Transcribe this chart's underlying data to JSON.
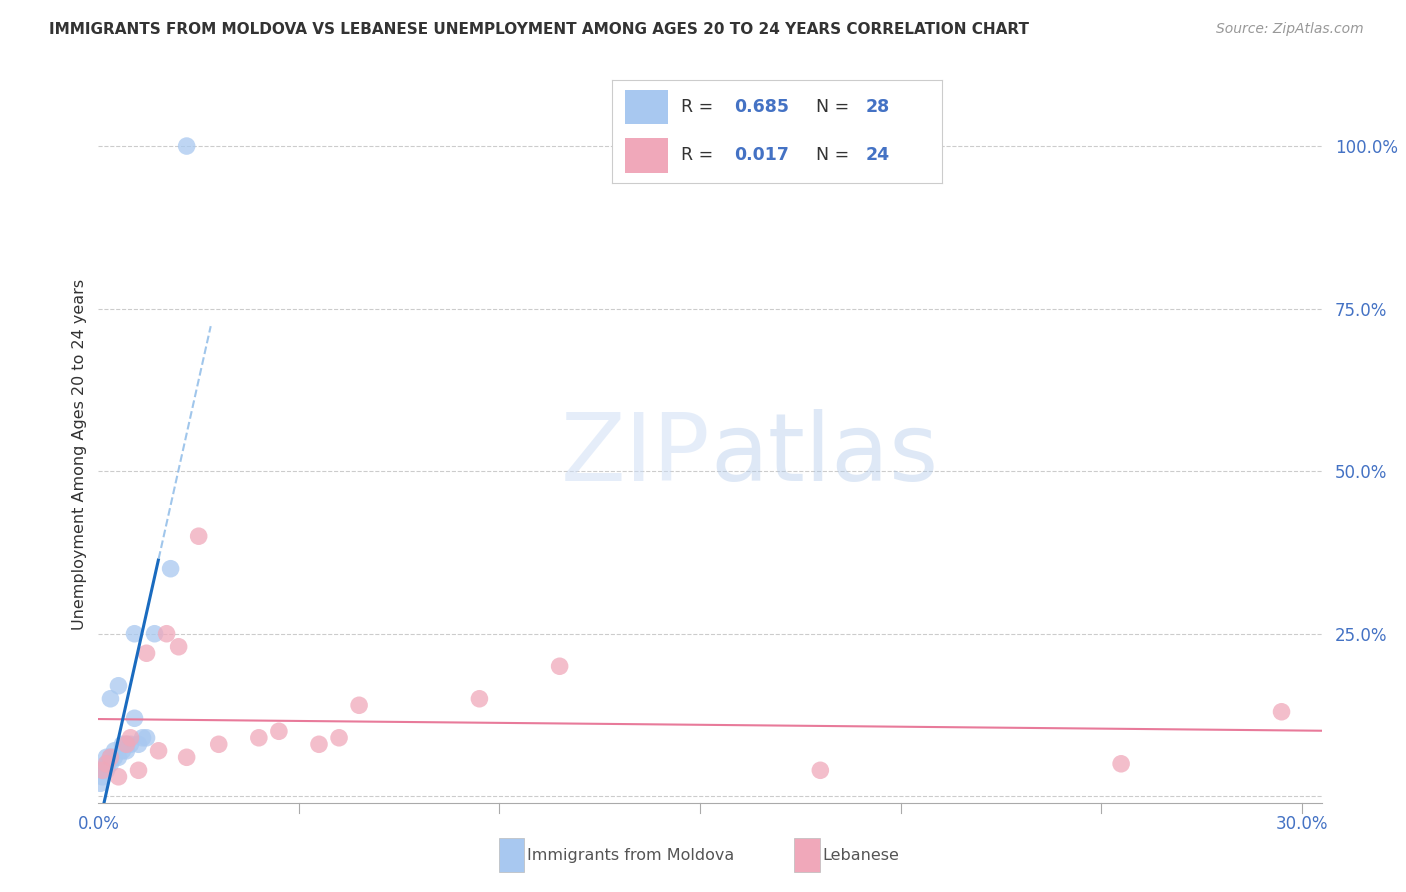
{
  "title": "IMMIGRANTS FROM MOLDOVA VS LEBANESE UNEMPLOYMENT AMONG AGES 20 TO 24 YEARS CORRELATION CHART",
  "source": "Source: ZipAtlas.com",
  "ylabel": "Unemployment Among Ages 20 to 24 years",
  "xlim": [
    0.0,
    0.305
  ],
  "ylim": [
    -0.01,
    1.06
  ],
  "xtick_positions": [
    0.0,
    0.05,
    0.1,
    0.15,
    0.2,
    0.25,
    0.3
  ],
  "xticklabels": [
    "0.0%",
    "",
    "",
    "",
    "",
    "",
    "30.0%"
  ],
  "ytick_positions": [
    0.0,
    0.25,
    0.5,
    0.75,
    1.0
  ],
  "yticklabels": [
    "",
    "25.0%",
    "50.0%",
    "75.0%",
    "100.0%"
  ],
  "legend_r1": "0.685",
  "legend_n1": "28",
  "legend_r2": "0.017",
  "legend_n2": "24",
  "background_color": "#ffffff",
  "moldova_color": "#a8c8f0",
  "lebanese_color": "#f0a8ba",
  "moldova_line_color": "#1a6bbf",
  "lebanese_line_color": "#e87a9a",
  "moldova_x": [
    0.0005,
    0.001,
    0.001,
    0.0015,
    0.002,
    0.002,
    0.002,
    0.0025,
    0.003,
    0.003,
    0.003,
    0.004,
    0.004,
    0.005,
    0.005,
    0.006,
    0.006,
    0.007,
    0.007,
    0.008,
    0.009,
    0.009,
    0.01,
    0.011,
    0.012,
    0.014,
    0.018,
    0.022
  ],
  "moldova_y": [
    0.02,
    0.03,
    0.04,
    0.04,
    0.04,
    0.05,
    0.06,
    0.05,
    0.05,
    0.06,
    0.15,
    0.06,
    0.07,
    0.06,
    0.17,
    0.07,
    0.08,
    0.07,
    0.08,
    0.08,
    0.25,
    0.12,
    0.08,
    0.09,
    0.09,
    0.25,
    0.35,
    1.0
  ],
  "lebanese_x": [
    0.001,
    0.002,
    0.003,
    0.005,
    0.007,
    0.008,
    0.01,
    0.012,
    0.015,
    0.017,
    0.02,
    0.022,
    0.025,
    0.03,
    0.04,
    0.045,
    0.055,
    0.06,
    0.065,
    0.095,
    0.115,
    0.18,
    0.255,
    0.295
  ],
  "lebanese_y": [
    0.04,
    0.05,
    0.06,
    0.03,
    0.08,
    0.09,
    0.04,
    0.22,
    0.07,
    0.25,
    0.23,
    0.06,
    0.4,
    0.08,
    0.09,
    0.1,
    0.08,
    0.09,
    0.14,
    0.15,
    0.2,
    0.04,
    0.05,
    0.13
  ],
  "grid_color": "#cccccc",
  "tick_color": "#4472c4",
  "label_color": "#333333",
  "source_color": "#999999"
}
